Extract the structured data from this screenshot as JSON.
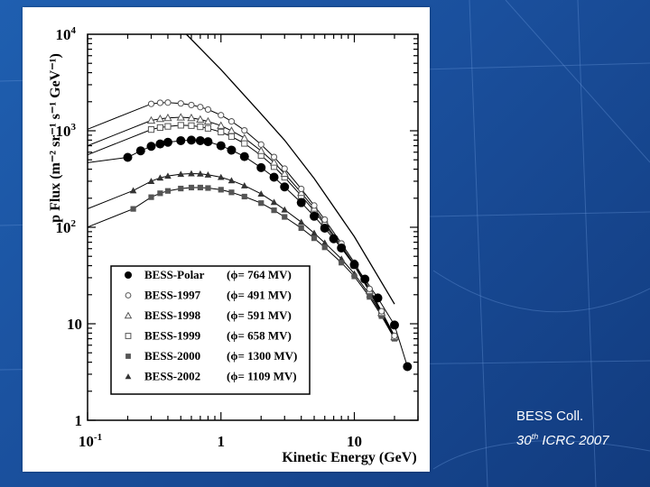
{
  "caption": {
    "collaboration": "BESS Coll.",
    "conf_number": "30",
    "conf_suffix": "th",
    "conf_name": "ICRC 2007"
  },
  "chart_data": {
    "type": "scatter",
    "xlabel": "Kinetic Energy (GeV)",
    "ylabel": "p Flux (m⁻² sr⁻¹ s⁻¹ GeV⁻¹)",
    "xscale": "log",
    "yscale": "log",
    "xlim": [
      0.1,
      30
    ],
    "ylim": [
      1,
      10000
    ],
    "x_ticks": [
      {
        "value": 0.1,
        "base": "10",
        "exp": "-1"
      },
      {
        "value": 1,
        "base": "1",
        "exp": ""
      },
      {
        "value": 10,
        "base": "10",
        "exp": ""
      }
    ],
    "y_ticks": [
      {
        "value": 1,
        "base": "1",
        "exp": ""
      },
      {
        "value": 10,
        "base": "10",
        "exp": ""
      },
      {
        "value": 100,
        "base": "10",
        "exp": "2"
      },
      {
        "value": 1000,
        "base": "10",
        "exp": "3"
      },
      {
        "value": 10000,
        "base": "10",
        "exp": "4"
      }
    ],
    "legend_position": "lower-left",
    "lis_curve": {
      "x": [
        0.55,
        1,
        2,
        3,
        5,
        10,
        20
      ],
      "y": [
        10000,
        4300,
        1500,
        800,
        320,
        80,
        16
      ]
    },
    "series": [
      {
        "name": "BESS-Polar",
        "phi": "ϕ=  764 MV",
        "marker": "filled-circle",
        "x": [
          0.2,
          0.25,
          0.3,
          0.35,
          0.4,
          0.5,
          0.6,
          0.7,
          0.8,
          1.0,
          1.2,
          1.5,
          2.0,
          2.5,
          3.0,
          4.0,
          5.0,
          6.0,
          7.0,
          8.0,
          10.0,
          12.0,
          15.0,
          20.0,
          25.0
        ],
        "y": [
          530,
          620,
          690,
          730,
          760,
          790,
          800,
          790,
          770,
          700,
          630,
          540,
          415,
          330,
          262,
          180,
          130,
          98,
          76,
          61,
          41,
          29,
          18.5,
          9.7,
          3.6
        ]
      },
      {
        "name": "BESS-1997",
        "phi": "ϕ=  491 MV",
        "marker": "open-circle",
        "x": [
          0.3,
          0.35,
          0.4,
          0.5,
          0.6,
          0.7,
          0.8,
          1.0,
          1.2,
          1.5,
          2.0,
          2.5,
          3.0,
          4.0,
          5.0,
          6.0,
          8.0,
          10.0,
          13.0,
          16.0,
          20.0
        ],
        "y": [
          1900,
          1950,
          1960,
          1920,
          1850,
          1760,
          1660,
          1450,
          1250,
          1010,
          720,
          535,
          405,
          250,
          168,
          120,
          68,
          43,
          23,
          13.5,
          7.5
        ]
      },
      {
        "name": "BESS-1998",
        "phi": "ϕ=  591 MV",
        "marker": "open-triangle",
        "x": [
          0.3,
          0.35,
          0.4,
          0.5,
          0.6,
          0.7,
          0.8,
          1.0,
          1.2,
          1.5,
          2.0,
          2.5,
          3.0,
          4.0,
          5.0,
          6.0,
          8.0,
          10.0,
          13.0,
          16.0,
          20.0
        ],
        "y": [
          1280,
          1330,
          1360,
          1380,
          1360,
          1310,
          1250,
          1130,
          1000,
          840,
          620,
          470,
          360,
          228,
          157,
          112,
          64,
          41,
          22,
          13,
          7.3
        ]
      },
      {
        "name": "BESS-1999",
        "phi": "ϕ=  658 MV",
        "marker": "open-square",
        "x": [
          0.3,
          0.35,
          0.4,
          0.5,
          0.6,
          0.7,
          0.8,
          1.0,
          1.2,
          1.5,
          2.0,
          2.5,
          3.0,
          4.0,
          5.0,
          6.0,
          8.0,
          10.0,
          13.0,
          16.0,
          20.0
        ],
        "y": [
          1030,
          1080,
          1110,
          1140,
          1130,
          1100,
          1060,
          970,
          870,
          740,
          555,
          425,
          330,
          212,
          148,
          107,
          61,
          40,
          21.5,
          12.8,
          7.2
        ]
      },
      {
        "name": "BESS-2000",
        "phi": "ϕ= 1300 MV",
        "marker": "filled-square",
        "x": [
          0.22,
          0.3,
          0.35,
          0.4,
          0.5,
          0.6,
          0.7,
          0.8,
          1.0,
          1.2,
          1.5,
          2.0,
          2.5,
          3.0,
          4.0,
          5.0,
          6.0,
          8.0,
          10.0,
          13.0,
          16.0,
          20.0
        ],
        "y": [
          155,
          205,
          225,
          238,
          252,
          258,
          258,
          255,
          245,
          230,
          208,
          178,
          150,
          128,
          98,
          77,
          62,
          43,
          31,
          19,
          12,
          7
        ]
      },
      {
        "name": "BESS-2002",
        "phi": "ϕ= 1109 MV",
        "marker": "filled-triangle",
        "x": [
          0.22,
          0.3,
          0.35,
          0.4,
          0.5,
          0.6,
          0.7,
          0.8,
          1.0,
          1.2,
          1.5,
          2.0,
          2.5,
          3.0,
          4.0,
          5.0,
          6.0,
          8.0,
          10.0,
          13.0,
          16.0,
          20.0
        ],
        "y": [
          240,
          300,
          325,
          340,
          355,
          360,
          358,
          350,
          330,
          305,
          270,
          222,
          182,
          152,
          113,
          87,
          69,
          47,
          33,
          20,
          12.5,
          7.2
        ]
      }
    ]
  }
}
